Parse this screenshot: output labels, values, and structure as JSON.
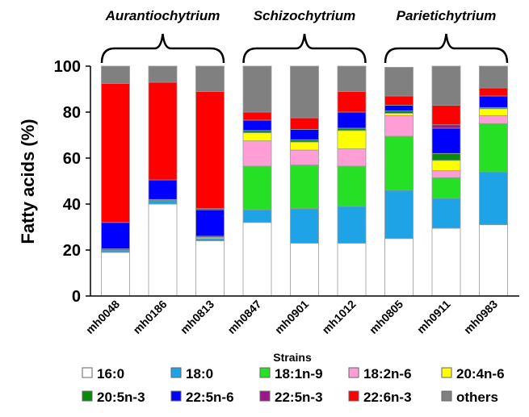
{
  "chart_data": {
    "type": "bar",
    "stacked": true,
    "title": "",
    "xlabel": "Strains",
    "ylabel": "Fatty acids (%)",
    "ylim": [
      0,
      100
    ],
    "yticks": [
      0,
      20,
      40,
      60,
      80,
      100
    ],
    "grid": false,
    "legend_position": "bottom",
    "groups": [
      {
        "label": "Aurantiochytrium",
        "categories": [
          "mh0048",
          "mh0186",
          "mh0813"
        ]
      },
      {
        "label": "Schizochytrium",
        "categories": [
          "mh0847",
          "mh0901",
          "mh1012"
        ]
      },
      {
        "label": "Parietichytrium",
        "categories": [
          "mh0805",
          "mh0911",
          "mh0983"
        ]
      }
    ],
    "categories": [
      "mh0048",
      "mh0186",
      "mh0813",
      "mh0847",
      "mh0901",
      "mh1012",
      "mh0805",
      "mh0911",
      "mh0983"
    ],
    "series": [
      {
        "name": "16:0",
        "color": "#ffffff",
        "values": [
          19,
          40,
          24,
          32,
          23,
          23,
          25,
          29.5,
          31
        ]
      },
      {
        "name": "18:0",
        "color": "#1ea3e6",
        "values": [
          1,
          1.5,
          1,
          5.5,
          15,
          16,
          21,
          13,
          23
        ]
      },
      {
        "name": "18:1n-9",
        "color": "#26e026",
        "values": [
          0,
          0,
          0,
          19,
          19,
          17.5,
          23.5,
          9,
          21
        ]
      },
      {
        "name": "18:2n-6",
        "color": "#ff9ed6",
        "values": [
          0,
          0,
          0,
          11,
          6.5,
          7.5,
          9,
          3,
          3.5
        ]
      },
      {
        "name": "20:4n-6",
        "color": "#ffff00",
        "values": [
          0,
          0,
          0.5,
          3.5,
          3.5,
          8,
          1,
          4.5,
          3
        ]
      },
      {
        "name": "20:5n-3",
        "color": "#0a8a0a",
        "values": [
          0.5,
          0.5,
          0.5,
          1,
          1,
          1,
          1,
          3,
          0.5
        ]
      },
      {
        "name": "22:5n-6",
        "color": "#0000ff",
        "values": [
          11.5,
          8.5,
          11.5,
          4.5,
          4.5,
          7,
          2.5,
          11,
          5
        ]
      },
      {
        "name": "22:5n-3",
        "color": "#a0148c",
        "values": [
          0,
          0,
          0.5,
          0,
          0,
          0,
          0,
          1.5,
          0
        ]
      },
      {
        "name": "22:6n-3",
        "color": "#ff0000",
        "values": [
          60.5,
          42.5,
          51,
          3.5,
          5,
          9,
          4,
          8.5,
          3.5
        ]
      },
      {
        "name": "others",
        "color": "#808080",
        "values": [
          7.5,
          7,
          11,
          20,
          22.5,
          11,
          12.5,
          17,
          9.5
        ]
      }
    ]
  }
}
